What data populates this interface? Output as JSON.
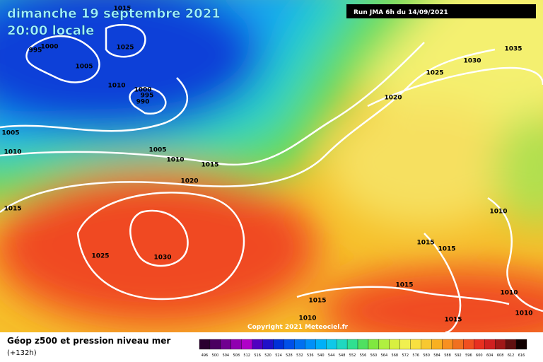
{
  "header": {
    "date": "dimanche 19 septembre 2021",
    "time": "20:00 locale",
    "run": "Run JMA 6h du 14/09/2021"
  },
  "isobar_labels": [
    "995",
    "1000",
    "1025",
    "1015",
    "1005",
    "1010",
    "1000",
    "995",
    "990",
    "1005",
    "1010",
    "1005",
    "1010",
    "1015",
    "1020",
    "1015",
    "1025",
    "1030",
    "1030",
    "1035",
    "1025",
    "1020",
    "1010",
    "1015",
    "1015",
    "1015",
    "1010",
    "1015",
    "1010",
    "1015",
    "1010"
  ],
  "copyright": "Copyright 2021 Meteociel.fr",
  "legend": {
    "title": "Géop z500 et pression niveau mer",
    "subtitle": "(+132h)",
    "scale": [
      "496",
      "500",
      "504",
      "508",
      "512",
      "516",
      "520",
      "524",
      "528",
      "532",
      "536",
      "540",
      "544",
      "548",
      "552",
      "556",
      "560",
      "564",
      "568",
      "572",
      "576",
      "580",
      "584",
      "588",
      "592",
      "596",
      "600",
      "604",
      "608",
      "612",
      "616"
    ]
  }
}
